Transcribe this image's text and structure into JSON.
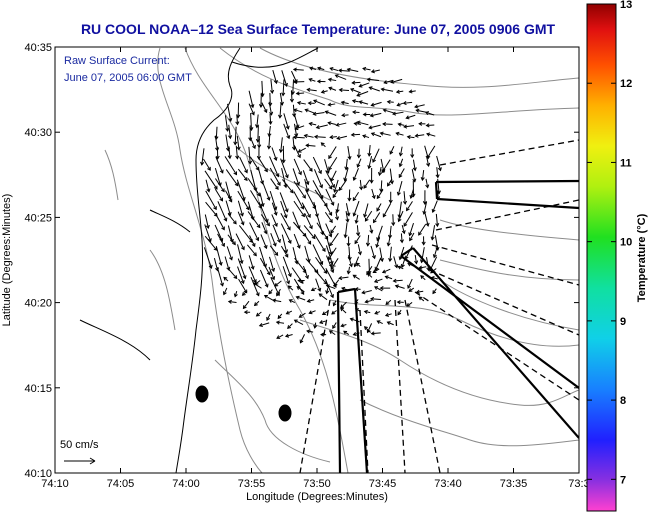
{
  "chart_data": {
    "type": "vector_field_map",
    "title": "RU COOL  NOAA–12  Sea Surface Temperature:  June 07, 2005 0906 GMT",
    "annotation": [
      "Raw Surface Current:",
      "June 07, 2005 06:00 GMT"
    ],
    "scale_label": "50 cm/s",
    "xlabel": "Longitude (Degrees:Minutes)",
    "ylabel": "Latitude (Degrees:Minutes)",
    "x_ticks": [
      "74:10",
      "74:05",
      "74:00",
      "73:55",
      "73:50",
      "73:45",
      "73:40",
      "73:35",
      "73:3"
    ],
    "y_ticks": [
      "40:35",
      "40:30",
      "40:25",
      "40:20",
      "40:15",
      "40:10"
    ],
    "xlim_minutes_west": [
      4450,
      4410
    ],
    "ylim_minutes_north": [
      2410,
      2435
    ],
    "colorbar": {
      "label": "Temperature (°C)",
      "ticks": [
        "13",
        "12",
        "11",
        "10",
        "9",
        "8",
        "7"
      ],
      "range": [
        6.6,
        13
      ]
    },
    "colors": {
      "title": "#1010a0",
      "annotation": "#1a2aa0",
      "contour": "#8c8c8c",
      "coast": "#000000",
      "vectors": "#000000"
    }
  }
}
